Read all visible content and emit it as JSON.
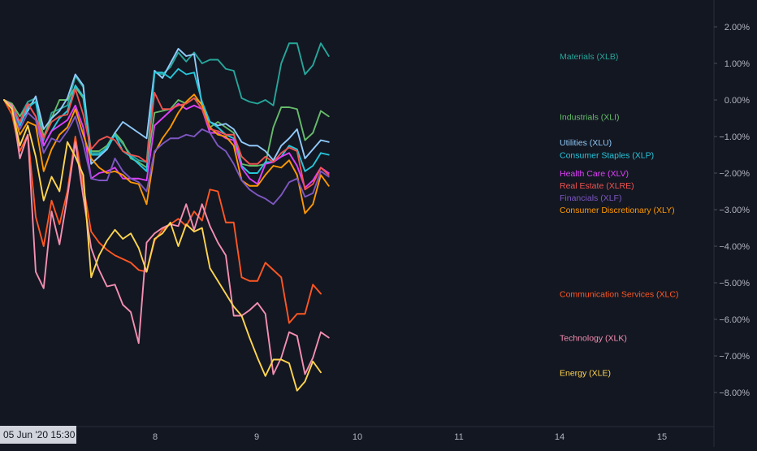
{
  "chart_data": {
    "type": "line",
    "title": "",
    "xlabel": "",
    "ylabel": "",
    "yunit": "%",
    "ylim": [
      -8.9,
      2.6
    ],
    "y_ticks": [
      2,
      1,
      0,
      -1,
      -2,
      -3,
      -4,
      -5,
      -6,
      -7,
      -8
    ],
    "y_tick_labels": [
      "2.00%",
      "1.00%",
      "0.00%",
      "−1.00%",
      "−2.00%",
      "−3.00%",
      "−4.00%",
      "−5.00%",
      "−6.00%",
      "−7.00%",
      "−8.00%"
    ],
    "x_tick_labels": [
      "8",
      "9",
      "10",
      "11",
      "14",
      "15"
    ],
    "crosshair_time_label": "05 Jun '20   15:30",
    "grid": false,
    "background": "#131722",
    "axis_text_color": "#b2b5be",
    "series": [
      {
        "name": "Materials (XLB)",
        "color": "#26a69a",
        "values": [
          0.0,
          -0.15,
          -0.45,
          -0.05,
          0.05,
          -1.1,
          -0.35,
          -0.25,
          -0.15,
          0.65,
          0.35,
          -1.45,
          -1.45,
          -1.35,
          -0.95,
          -1.2,
          -1.5,
          -1.65,
          -1.7,
          0.75,
          0.7,
          0.9,
          1.3,
          1.05,
          1.3,
          1.0,
          1.1,
          1.1,
          0.85,
          0.8,
          0.05,
          -0.05,
          -0.1,
          0.0,
          -0.15,
          1.0,
          1.55,
          1.55,
          0.7,
          0.95,
          1.55,
          1.2
        ]
      },
      {
        "name": "Industrials (XLI)",
        "color": "#66bb6a",
        "values": [
          0.0,
          -0.1,
          -0.45,
          -0.15,
          -0.05,
          -1.0,
          -0.5,
          0.0,
          0.0,
          0.35,
          0.05,
          -1.4,
          -1.4,
          -1.25,
          -0.9,
          -1.15,
          -1.6,
          -1.7,
          -1.85,
          -0.35,
          -0.3,
          -0.25,
          0.0,
          -0.1,
          0.05,
          -0.1,
          -0.75,
          -0.6,
          -0.75,
          -0.9,
          -1.75,
          -1.8,
          -1.8,
          -1.75,
          -0.75,
          -0.2,
          -0.2,
          -0.25,
          -1.1,
          -0.9,
          -0.3,
          -0.45
        ]
      },
      {
        "name": "Utilities (XLU)",
        "color": "#90caf9",
        "values": [
          0.0,
          -0.2,
          -0.6,
          -0.3,
          0.1,
          -0.8,
          -0.5,
          -0.3,
          0.05,
          0.7,
          0.4,
          -1.75,
          -1.55,
          -1.35,
          -0.9,
          -0.6,
          -0.75,
          -0.9,
          -1.05,
          0.8,
          0.6,
          1.0,
          1.4,
          1.2,
          1.25,
          -0.15,
          -0.6,
          -0.7,
          -0.65,
          -0.8,
          -1.15,
          -1.25,
          -1.25,
          -1.4,
          -1.65,
          -1.25,
          -1.05,
          -0.8,
          -1.6,
          -1.35,
          -1.1,
          -1.15
        ]
      },
      {
        "name": "Consumer Staples (XLP)",
        "color": "#26c6da",
        "values": [
          0.0,
          -0.2,
          -0.7,
          -0.2,
          -0.05,
          -1.25,
          -0.85,
          -0.5,
          -0.3,
          0.4,
          0.1,
          -1.5,
          -1.5,
          -1.3,
          -0.95,
          -1.4,
          -1.55,
          -1.75,
          -1.95,
          0.75,
          0.75,
          0.6,
          0.85,
          0.7,
          0.75,
          -0.05,
          -0.6,
          -0.75,
          -0.95,
          -1.05,
          -1.8,
          -2.0,
          -2.0,
          -1.7,
          -1.7,
          -1.55,
          -1.25,
          -1.35,
          -1.95,
          -1.8,
          -1.45,
          -1.5
        ]
      },
      {
        "name": "Health Care (XLV)",
        "color": "#e040fb",
        "values": [
          0.0,
          -0.15,
          -0.6,
          -0.1,
          -0.45,
          -1.25,
          -0.85,
          -0.7,
          -0.55,
          -0.15,
          -0.75,
          -2.15,
          -2.0,
          -1.95,
          -1.85,
          -2.15,
          -2.15,
          -2.15,
          -2.2,
          -0.7,
          -0.5,
          -0.3,
          -0.1,
          -0.25,
          -0.15,
          -0.25,
          -0.9,
          -0.9,
          -1.05,
          -1.1,
          -1.85,
          -2.15,
          -2.3,
          -1.75,
          -1.7,
          -1.55,
          -1.45,
          -1.8,
          -2.4,
          -2.2,
          -1.85,
          -2.0
        ]
      },
      {
        "name": "Consumer Discretionary (XLY)",
        "color": "#ff9800",
        "values": [
          0.0,
          -0.25,
          -0.95,
          -0.6,
          -0.7,
          -1.95,
          -1.35,
          -0.95,
          -0.75,
          -0.25,
          -0.95,
          -1.6,
          -1.85,
          -2.0,
          -1.95,
          -2.05,
          -2.25,
          -2.3,
          -2.85,
          -1.45,
          -1.05,
          -0.75,
          -0.35,
          -0.05,
          0.15,
          -0.15,
          -0.75,
          -0.95,
          -1.0,
          -1.25,
          -2.2,
          -2.35,
          -2.35,
          -2.05,
          -1.8,
          -1.85,
          -1.65,
          -2.05,
          -3.1,
          -2.85,
          -2.05,
          -2.35
        ]
      },
      {
        "name": "Financials (XLF)",
        "color": "#7e57c2",
        "values": [
          0.0,
          -0.25,
          -0.8,
          -0.35,
          -0.55,
          -1.45,
          -1.05,
          -1.15,
          -0.85,
          -0.45,
          -1.2,
          -2.15,
          -2.2,
          -2.2,
          -1.6,
          -1.95,
          -2.15,
          -2.25,
          -2.5,
          -1.4,
          -1.2,
          -1.05,
          -1.05,
          -0.95,
          -1.0,
          -0.8,
          -0.9,
          -1.25,
          -1.4,
          -1.75,
          -2.2,
          -2.45,
          -2.6,
          -2.7,
          -2.85,
          -2.6,
          -2.25,
          -2.15,
          -2.65,
          -2.55,
          -1.95,
          -2.1
        ]
      },
      {
        "name": "Real Estate (XLRE)",
        "color": "#ef5350",
        "values": [
          0.0,
          -0.15,
          -0.6,
          -0.1,
          -0.45,
          -1.05,
          -0.6,
          -0.45,
          -0.4,
          0.3,
          -0.4,
          -1.35,
          -1.1,
          -1.0,
          -1.1,
          -1.4,
          -1.5,
          -1.55,
          -1.7,
          0.2,
          -0.25,
          -0.25,
          -0.15,
          -0.1,
          0.05,
          -0.25,
          -0.8,
          -0.85,
          -0.95,
          -0.95,
          -1.55,
          -1.75,
          -1.75,
          -1.55,
          -1.7,
          -1.45,
          -1.3,
          -1.4,
          -2.45,
          -2.3,
          -1.85,
          -2.05
        ]
      },
      {
        "name": "Communication Services (XLC)",
        "color": "#ff5722",
        "values": [
          0.0,
          -0.4,
          -1.4,
          -0.95,
          -3.2,
          -4.0,
          -2.75,
          -3.4,
          -2.5,
          -1.0,
          -2.35,
          -3.6,
          -3.9,
          -4.1,
          -4.25,
          -4.35,
          -4.45,
          -4.65,
          -4.7,
          -3.85,
          -3.55,
          -3.4,
          -3.25,
          -3.45,
          -3.05,
          -3.3,
          -2.45,
          -2.5,
          -3.35,
          -3.35,
          -4.85,
          -4.95,
          -4.95,
          -4.45,
          -4.65,
          -4.85,
          -6.1,
          -5.85,
          -5.85,
          -5.05,
          -5.3
        ]
      },
      {
        "name": "Technology (XLK)",
        "color": "#f48fb1",
        "values": [
          0.0,
          -0.15,
          -1.6,
          -0.95,
          -4.7,
          -5.15,
          -3.05,
          -3.95,
          -2.65,
          -1.15,
          -2.65,
          -4.05,
          -4.65,
          -5.1,
          -5.05,
          -5.6,
          -5.8,
          -6.65,
          -3.9,
          -3.65,
          -3.5,
          -3.4,
          -3.45,
          -2.85,
          -3.55,
          -2.85,
          -3.45,
          -3.9,
          -4.25,
          -5.9,
          -5.9,
          -5.75,
          -5.55,
          -5.85,
          -7.5,
          -7.05,
          -6.35,
          -6.45,
          -7.5,
          -7.05,
          -6.35,
          -6.5
        ]
      },
      {
        "name": "Energy (XLE)",
        "color": "#ffd54f",
        "values": [
          0.0,
          -0.25,
          -1.25,
          -0.7,
          -1.55,
          -2.75,
          -2.1,
          -2.5,
          -1.15,
          -1.55,
          -2.05,
          -4.85,
          -4.25,
          -3.85,
          -3.55,
          -3.8,
          -3.65,
          -4.05,
          -4.7,
          -3.8,
          -3.65,
          -3.35,
          -4.0,
          -3.4,
          -3.6,
          -3.5,
          -4.6,
          -4.95,
          -5.3,
          -5.65,
          -5.9,
          -6.5,
          -7.05,
          -7.55,
          -7.1,
          -7.1,
          -7.2,
          -7.95,
          -7.7,
          -7.15,
          -7.45
        ]
      }
    ]
  }
}
